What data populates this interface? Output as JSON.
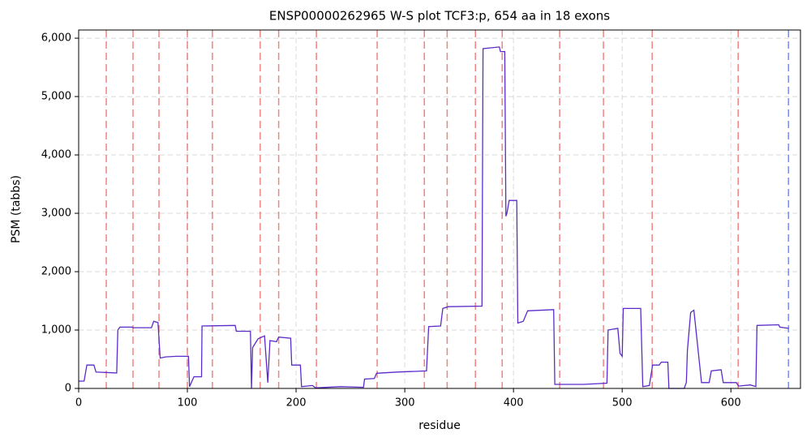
{
  "chart_data": {
    "type": "line",
    "title": "ENSP00000262965 W-S plot TCF3:p, 654 aa in 18 exons",
    "x_label": "residue",
    "y_label": "PSM (tabbs)",
    "xlim": [
      0,
      664
    ],
    "ylim": [
      0,
      6140
    ],
    "xticks": [
      0,
      100,
      200,
      300,
      400,
      500,
      600
    ],
    "yticks": [
      0,
      {
        "value": 1000,
        "label": "1,000"
      },
      {
        "value": 2000,
        "label": "2,000"
      },
      {
        "value": 3000,
        "label": "3,000"
      },
      {
        "value": 4000,
        "label": "4,000"
      },
      {
        "value": 5000,
        "label": "5,000"
      },
      {
        "value": 6000,
        "label": "6,000"
      }
    ],
    "grid": true,
    "exon_boundaries": [
      25.4,
      50,
      73.9,
      100,
      123,
      167,
      184,
      218.7,
      274.6,
      318,
      339,
      365,
      389.6,
      442.5,
      482.8,
      527.6,
      606.7
    ],
    "exon_boundary_color": "#e8504f",
    "protein_end": 653,
    "protein_end_color": "#5a6fe0",
    "series": [
      {
        "color": "#5b2bc9",
        "x": [
          0,
          5,
          7.5,
          14,
          16,
          35,
          36,
          38,
          49,
          50,
          67,
          69,
          73,
          75,
          80,
          90,
          101,
          102,
          106,
          113,
          113.5,
          144,
          145,
          158,
          159,
          160,
          165,
          171,
          174,
          176,
          182,
          184,
          195,
          196,
          204,
          205,
          215,
          218,
          241,
          262,
          263,
          272,
          274,
          293,
          320,
          322,
          333,
          335,
          340,
          371,
          372,
          387,
          388,
          392,
          393,
          394,
          396,
          403,
          404,
          409,
          413,
          437,
          438,
          465,
          486,
          487,
          496,
          498,
          500,
          501,
          517,
          519,
          525,
          528,
          534,
          536,
          542,
          543,
          557,
          559,
          560,
          563,
          566,
          569,
          573,
          580,
          582,
          591,
          593,
          605,
          607,
          618,
          623,
          624,
          644,
          645,
          653
        ],
        "values": [
          125,
          125,
          400,
          400,
          280,
          265,
          1000,
          1050,
          1050,
          1040,
          1040,
          1150,
          1130,
          520,
          540,
          550,
          550,
          30,
          200,
          200,
          1070,
          1080,
          980,
          980,
          0,
          700,
          850,
          900,
          100,
          820,
          800,
          880,
          860,
          400,
          400,
          30,
          50,
          10,
          30,
          20,
          160,
          170,
          260,
          280,
          300,
          1060,
          1070,
          1370,
          1400,
          1410,
          5820,
          5850,
          5770,
          5770,
          2950,
          3000,
          3220,
          3220,
          1120,
          1150,
          1330,
          1350,
          70,
          70,
          90,
          1000,
          1030,
          600,
          550,
          1370,
          1370,
          30,
          50,
          400,
          400,
          450,
          450,
          0,
          0,
          100,
          650,
          1300,
          1340,
          800,
          100,
          100,
          300,
          320,
          100,
          100,
          40,
          60,
          30,
          1080,
          1090,
          1050,
          1030
        ]
      }
    ]
  }
}
